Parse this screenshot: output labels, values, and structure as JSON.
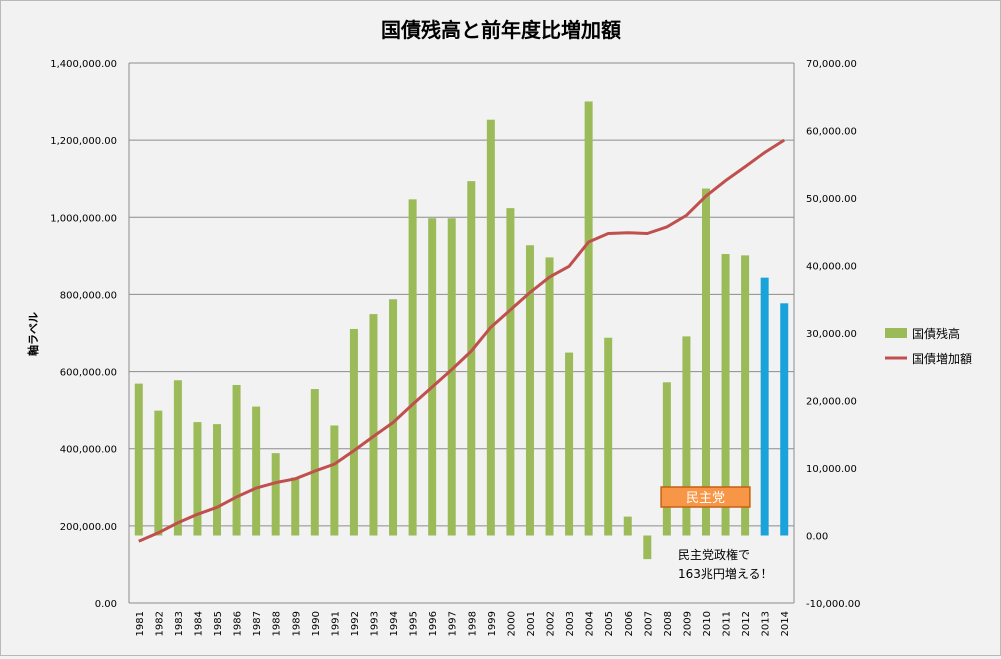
{
  "chart_data": {
    "type": "bar",
    "title": "国債残高と前年度比増加額",
    "ylabel": "軸ラベル",
    "xlabel": "",
    "categories": [
      "1981",
      "1982",
      "1983",
      "1984",
      "1985",
      "1986",
      "1987",
      "1988",
      "1989",
      "1990",
      "1991",
      "1992",
      "1993",
      "1994",
      "1995",
      "1996",
      "1997",
      "1998",
      "1999",
      "2000",
      "2001",
      "2002",
      "2003",
      "2004",
      "2005",
      "2006",
      "2007",
      "2008",
      "2009",
      "2010",
      "2011",
      "2012",
      "2013",
      "2014"
    ],
    "ylim_left": [
      0,
      1400000
    ],
    "ylim_right": [
      -10000,
      70000
    ],
    "left_ticks": [
      "0.00",
      "200,000.00",
      "400,000.00",
      "600,000.00",
      "800,000.00",
      "1,000,000.00",
      "1,200,000.00",
      "1,400,000.00"
    ],
    "right_ticks": [
      "-10,000.00",
      "0.00",
      "10,000.00",
      "20,000.00",
      "30,000.00",
      "40,000.00",
      "50,000.00",
      "60,000.00",
      "70,000.00"
    ],
    "grid": true,
    "legend": "right",
    "series": [
      {
        "name": "国債残高",
        "type": "bar",
        "axis": "right",
        "color": "#9bbb59",
        "highlight_color": "#1aa3db",
        "highlight_from": "2013",
        "values": [
          22500,
          18500,
          23000,
          16800,
          16500,
          22300,
          19100,
          12200,
          8600,
          21700,
          16300,
          30600,
          32800,
          35000,
          49800,
          47000,
          47000,
          52500,
          61600,
          48500,
          43000,
          41200,
          27100,
          64300,
          29300,
          2800,
          -3500,
          22700,
          29500,
          51400,
          41700,
          41500,
          38200,
          34400
        ]
      },
      {
        "name": "国債増加額",
        "type": "line",
        "axis": "left",
        "color": "#c0504d",
        "values": [
          160000,
          182000,
          208000,
          230000,
          248000,
          275000,
          298000,
          312000,
          322000,
          342000,
          360000,
          395000,
          432000,
          468000,
          515000,
          560000,
          605000,
          653000,
          715000,
          760000,
          805000,
          845000,
          873000,
          936000,
          958000,
          960000,
          958000,
          975000,
          1005000,
          1055000,
          1095000,
          1131000,
          1168000,
          1200000
        ]
      }
    ],
    "annotations": {
      "box_label": "民主党",
      "box_from": "2008",
      "box_to": "2012",
      "box_color": "#f79646",
      "note_line1": "民主党政権で",
      "note_line2": "163兆円増える！"
    }
  }
}
